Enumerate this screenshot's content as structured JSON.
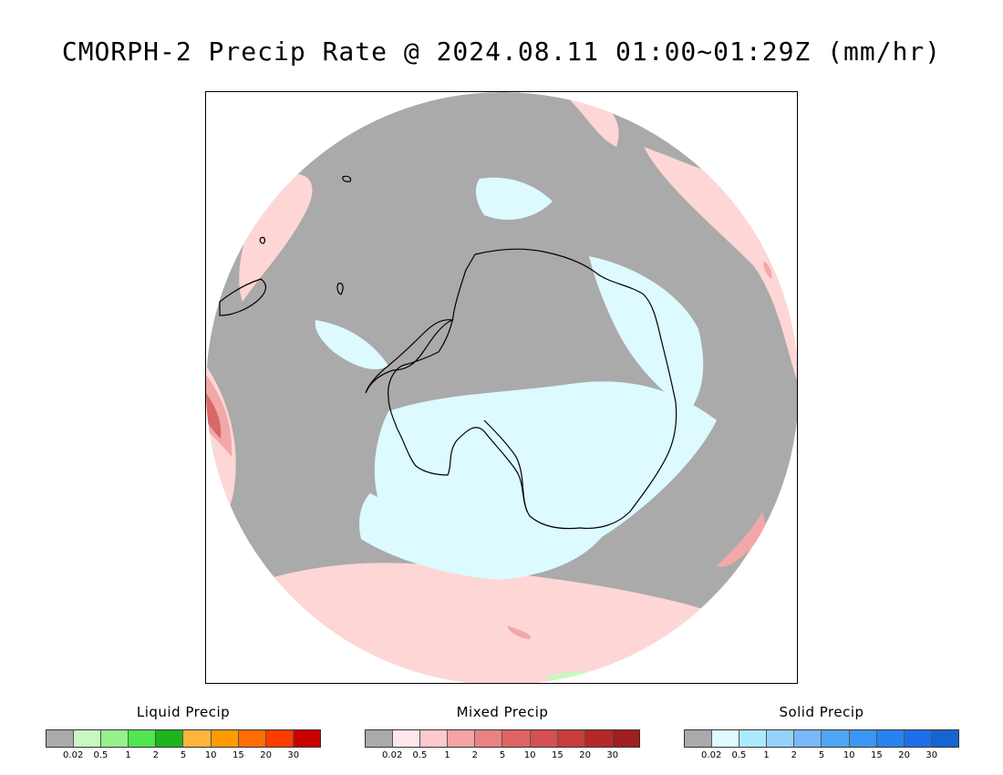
{
  "title": "CMORPH-2 Precip Rate @ 2024.08.11 01:00~01:29Z (mm/hr)",
  "map": {
    "projection": "south-polar-stereographic",
    "colors": {
      "background": "#aaaaaa",
      "liquid_light": "#c8f8c0",
      "mixed_light": "#ffd6d6",
      "mixed_medium": "#f2a8a8",
      "mixed_heavy": "#d86868",
      "solid_light": "#dcfaff",
      "coastline": "#000000"
    }
  },
  "legends": [
    {
      "title": "Liquid Precip",
      "colors": [
        "#aaaaaa",
        "#c8f8c0",
        "#96f08c",
        "#50e650",
        "#1eb41e",
        "#ffb43c",
        "#ff9b00",
        "#ff6e00",
        "#ff3c00",
        "#c80000"
      ],
      "ticks": [
        "0.02",
        "0.5",
        "1",
        "2",
        "5",
        "10",
        "15",
        "20",
        "30"
      ]
    },
    {
      "title": "Mixed Precip",
      "colors": [
        "#aaaaaa",
        "#ffe6ea",
        "#ffc8cc",
        "#f5a3a5",
        "#eb8282",
        "#e06464",
        "#d55050",
        "#c83c3c",
        "#b42828",
        "#a01e1e"
      ],
      "ticks": [
        "0.02",
        "0.5",
        "1",
        "2",
        "5",
        "10",
        "15",
        "20",
        "30"
      ]
    },
    {
      "title": "Solid Precip",
      "colors": [
        "#aaaaaa",
        "#dcfaff",
        "#aaeaff",
        "#96d2fa",
        "#78b9fa",
        "#50a5f5",
        "#3c96f5",
        "#2882f0",
        "#1e6eeb",
        "#1464d2"
      ],
      "ticks": [
        "0.02",
        "0.5",
        "1",
        "2",
        "5",
        "10",
        "15",
        "20",
        "30"
      ]
    }
  ]
}
